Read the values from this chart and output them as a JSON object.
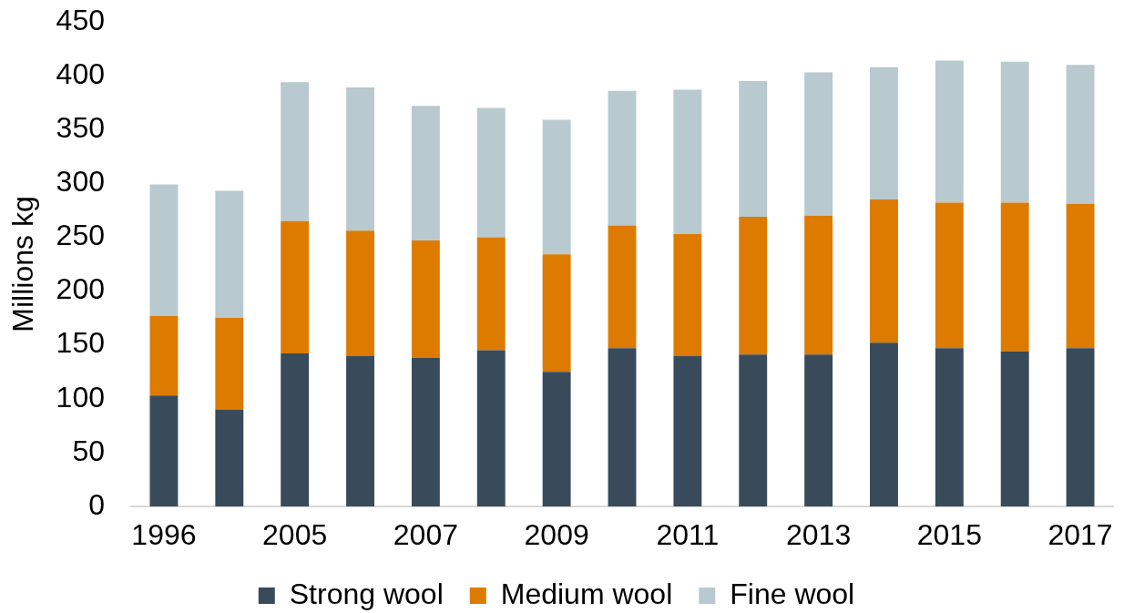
{
  "chart_data": {
    "type": "bar",
    "stacked": true,
    "ylabel": "Millions kg",
    "categories": [
      "1996",
      null,
      "2005",
      null,
      "2007",
      null,
      "2009",
      null,
      "2011",
      null,
      "2013",
      null,
      "2015",
      null,
      "2017"
    ],
    "series": [
      {
        "name": "Strong wool",
        "color": "#394b5a",
        "values": [
          103,
          90,
          142,
          140,
          138,
          145,
          125,
          147,
          140,
          141,
          141,
          152,
          147,
          144,
          147
        ]
      },
      {
        "name": "Medium wool",
        "color": "#dd7b00",
        "values": [
          74,
          85,
          123,
          116,
          109,
          105,
          109,
          114,
          113,
          128,
          129,
          133,
          135,
          138,
          134
        ]
      },
      {
        "name": "Fine wool",
        "color": "#b8c9d0",
        "values": [
          122,
          118,
          129,
          133,
          125,
          120,
          125,
          125,
          134,
          126,
          133,
          123,
          132,
          131,
          129
        ]
      }
    ],
    "ylim": [
      0,
      450
    ],
    "yticks": [
      0,
      50,
      100,
      150,
      200,
      250,
      300,
      350,
      400,
      450
    ],
    "grid": false,
    "legend": "bottom"
  }
}
